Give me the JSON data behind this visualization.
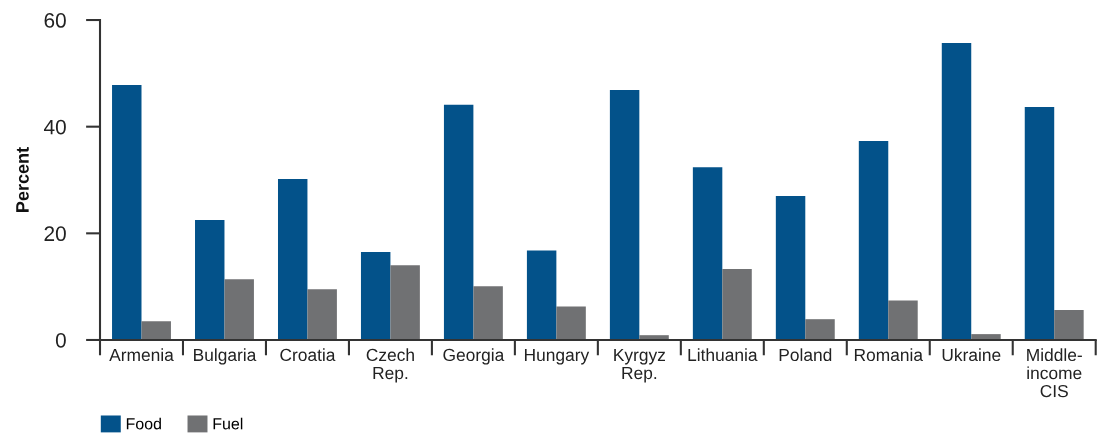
{
  "chart_data": {
    "type": "bar",
    "ylabel": "Percent",
    "categories": [
      "Armenia",
      "Bulgaria",
      "Croatia",
      "Czech\nRep.",
      "Georgia",
      "Hungary",
      "Kyrgyz\nRep.",
      "Lithuania",
      "Poland",
      "Romania",
      "Ukraine",
      "Middle-\nincome\nCIS"
    ],
    "series": [
      {
        "name": "Food",
        "color": "#03528a",
        "values": [
          47.8,
          22.5,
          30.2,
          16.5,
          44.1,
          16.8,
          46.9,
          32.4,
          27.0,
          37.3,
          55.7,
          43.7
        ]
      },
      {
        "name": "Fuel",
        "color": "#707173",
        "values": [
          3.5,
          11.4,
          9.5,
          14.0,
          10.1,
          6.3,
          0.9,
          13.3,
          3.9,
          7.4,
          1.1,
          5.6
        ]
      }
    ],
    "ylim": [
      0,
      60
    ],
    "yticks": [
      0,
      20,
      40,
      60
    ],
    "legend": "bottom left"
  }
}
